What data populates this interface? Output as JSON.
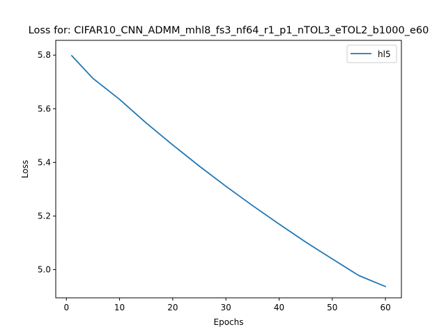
{
  "chart_data": {
    "type": "line",
    "title": "Loss for: CIFAR10_CNN_ADMM_mhl8_fs3_nf64_r1_p1_nTOL3_eTOL2_b1000_e60",
    "xlabel": "Epochs",
    "ylabel": "Loss",
    "xlim": [
      -2,
      63
    ],
    "ylim": [
      4.895,
      5.855
    ],
    "xticks": [
      0,
      10,
      20,
      30,
      40,
      50,
      60
    ],
    "xtick_labels": [
      "0",
      "10",
      "20",
      "30",
      "40",
      "50",
      "60"
    ],
    "yticks": [
      5.0,
      5.2,
      5.4,
      5.6,
      5.8
    ],
    "ytick_labels": [
      "5.0",
      "5.2",
      "5.4",
      "5.6",
      "5.8"
    ],
    "grid": false,
    "legend_position": "top-right",
    "series": [
      {
        "name": "hl5",
        "color": "#1f77b4",
        "x": [
          1,
          5,
          10,
          15,
          20,
          25,
          30,
          35,
          40,
          45,
          50,
          55,
          60
        ],
        "y": [
          5.798,
          5.713,
          5.635,
          5.547,
          5.465,
          5.386,
          5.311,
          5.239,
          5.17,
          5.103,
          5.04,
          4.978,
          4.937
        ]
      }
    ]
  }
}
